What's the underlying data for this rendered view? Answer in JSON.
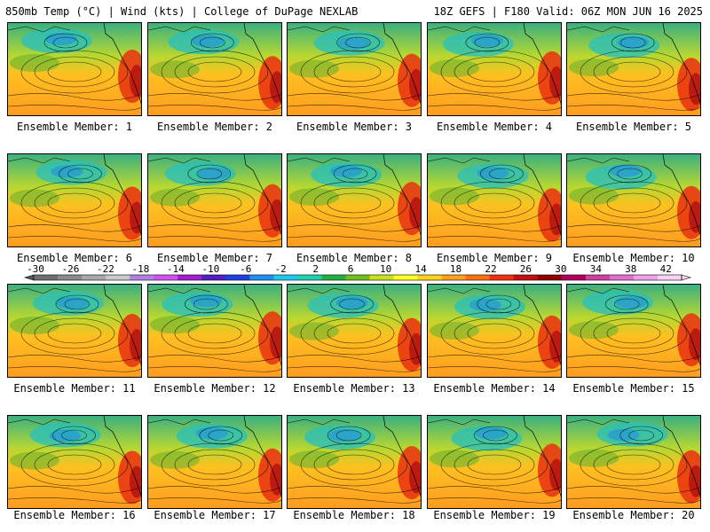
{
  "header": {
    "left": "850mb Temp (°C) | Wind (kts) | College of DuPage NEXLAB",
    "right": "18Z GEFS | F180 Valid: 06Z MON JUN 16 2025"
  },
  "panels": [
    {
      "label": "Ensemble Member: 1"
    },
    {
      "label": "Ensemble Member: 2"
    },
    {
      "label": "Ensemble Member: 3"
    },
    {
      "label": "Ensemble Member: 4"
    },
    {
      "label": "Ensemble Member: 5"
    },
    {
      "label": "Ensemble Member: 6"
    },
    {
      "label": "Ensemble Member: 7"
    },
    {
      "label": "Ensemble Member: 8"
    },
    {
      "label": "Ensemble Member: 9"
    },
    {
      "label": "Ensemble Member: 10"
    },
    {
      "label": "Ensemble Member: 11"
    },
    {
      "label": "Ensemble Member: 12"
    },
    {
      "label": "Ensemble Member: 13"
    },
    {
      "label": "Ensemble Member: 14"
    },
    {
      "label": "Ensemble Member: 15"
    },
    {
      "label": "Ensemble Member: 16"
    },
    {
      "label": "Ensemble Member: 17"
    },
    {
      "label": "Ensemble Member: 18"
    },
    {
      "label": "Ensemble Member: 19"
    },
    {
      "label": "Ensemble Member: 20"
    }
  ],
  "colorbar": {
    "ticks": [
      "-30",
      "-26",
      "-22",
      "-18",
      "-14",
      "-10",
      "-6",
      "-2",
      "2",
      "6",
      "10",
      "14",
      "18",
      "22",
      "26",
      "30",
      "34",
      "38",
      "42"
    ],
    "colors": [
      "#6e6e6e",
      "#8a8a8a",
      "#a8a8a8",
      "#c8c8c8",
      "#b080e0",
      "#d050f0",
      "#a020d0",
      "#5020c0",
      "#2040e0",
      "#2090f0",
      "#20c8f0",
      "#20d0b0",
      "#20b040",
      "#70c020",
      "#c8e020",
      "#ffff20",
      "#ffd020",
      "#ffa020",
      "#ff7010",
      "#f03010",
      "#c01010",
      "#900000",
      "#b00060",
      "#d040a0",
      "#e070d0",
      "#f0a0e8",
      "#f8d0f8"
    ]
  }
}
